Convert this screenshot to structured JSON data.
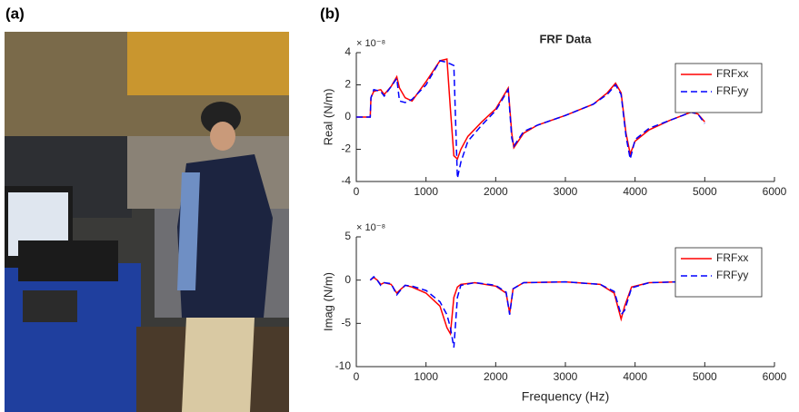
{
  "panel_labels": {
    "a": "(a)",
    "b": "(b)"
  },
  "chart_data": [
    {
      "type": "line",
      "title": "FRF Data",
      "ylabel": "Real (N/m)",
      "y_exponent": "× 10⁻⁸",
      "xlim": [
        0,
        6000
      ],
      "xticks": [
        0,
        1000,
        2000,
        3000,
        4000,
        5000,
        6000
      ],
      "ylim": [
        -4,
        4
      ],
      "yticks": [
        -4,
        -2,
        0,
        2,
        4
      ],
      "legend": "upper-right",
      "x": [
        0,
        200,
        210,
        250,
        350,
        400,
        500,
        580,
        620,
        700,
        800,
        1000,
        1200,
        1300,
        1350,
        1400,
        1450,
        1500,
        1600,
        1800,
        2000,
        2180,
        2230,
        2260,
        2400,
        2600,
        3000,
        3400,
        3600,
        3720,
        3800,
        3870,
        3930,
        4000,
        4200,
        4500,
        4800,
        4900,
        5000
      ],
      "series": [
        {
          "name": "FRFxx",
          "color": "#ff0000",
          "style": "solid",
          "values": [
            0,
            0,
            1.2,
            1.6,
            1.7,
            1.4,
            1.9,
            2.5,
            1.8,
            1.2,
            1.0,
            2.2,
            3.5,
            3.6,
            0.5,
            -2.4,
            -2.6,
            -2.0,
            -1.2,
            -0.3,
            0.5,
            1.8,
            -1.0,
            -1.9,
            -1.0,
            -0.5,
            0.1,
            0.8,
            1.5,
            2.1,
            1.5,
            -1.0,
            -2.3,
            -1.5,
            -0.8,
            -0.2,
            0.3,
            0.2,
            -0.3
          ]
        },
        {
          "name": "FRFyy",
          "color": "#0000ff",
          "style": "dashed",
          "values": [
            0,
            0,
            1.2,
            1.7,
            1.6,
            1.3,
            1.9,
            2.4,
            1.0,
            0.9,
            1.1,
            2.0,
            3.5,
            3.4,
            3.3,
            3.2,
            -3.8,
            -2.8,
            -1.5,
            -0.5,
            0.4,
            1.7,
            -1.3,
            -1.8,
            -0.9,
            -0.5,
            0.1,
            0.8,
            1.4,
            2.0,
            1.4,
            -1.2,
            -2.6,
            -1.4,
            -0.7,
            -0.2,
            0.3,
            0.2,
            -0.4
          ]
        }
      ]
    },
    {
      "type": "line",
      "xlabel": "Frequency (Hz)",
      "ylabel": "Imag (N/m)",
      "y_exponent": "× 10⁻⁸",
      "xlim": [
        0,
        6000
      ],
      "xticks": [
        0,
        1000,
        2000,
        3000,
        4000,
        5000,
        6000
      ],
      "ylim": [
        -10,
        5
      ],
      "yticks": [
        -10,
        -5,
        0,
        5
      ],
      "legend": "upper-right",
      "x": [
        200,
        250,
        300,
        350,
        400,
        500,
        580,
        620,
        700,
        800,
        1000,
        1200,
        1300,
        1350,
        1400,
        1450,
        1500,
        1700,
        2000,
        2150,
        2200,
        2250,
        2400,
        3000,
        3500,
        3700,
        3800,
        3850,
        3950,
        4200,
        4600,
        4800,
        5000
      ],
      "series": [
        {
          "name": "FRFxx",
          "color": "#ff0000",
          "style": "solid",
          "values": [
            0,
            0.3,
            0,
            -0.5,
            -0.3,
            -0.5,
            -1.5,
            -1.2,
            -0.6,
            -0.8,
            -1.5,
            -3,
            -5.5,
            -6.2,
            -2,
            -0.8,
            -0.5,
            -0.3,
            -0.7,
            -1.5,
            -3.8,
            -1,
            -0.3,
            -0.2,
            -0.5,
            -1.5,
            -4.5,
            -3,
            -0.8,
            -0.3,
            -0.2,
            -0.5,
            -1.6
          ]
        },
        {
          "name": "FRFyy",
          "color": "#0000ff",
          "style": "dashed",
          "values": [
            0,
            0.4,
            0,
            -0.6,
            -0.3,
            -0.4,
            -1.7,
            -1.3,
            -0.6,
            -0.7,
            -1.2,
            -2.5,
            -4,
            -5.5,
            -7.8,
            -2,
            -0.6,
            -0.3,
            -0.6,
            -1.4,
            -4,
            -1,
            -0.3,
            -0.2,
            -0.5,
            -1.3,
            -4,
            -3.5,
            -0.9,
            -0.3,
            -0.2,
            -0.5,
            -1.8
          ]
        }
      ]
    }
  ]
}
